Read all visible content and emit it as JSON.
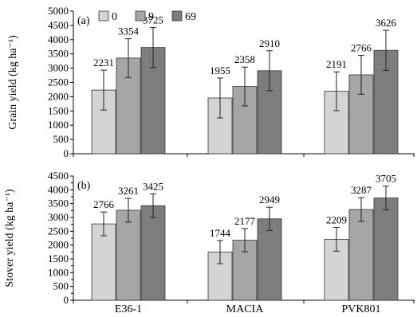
{
  "colors": {
    "0": "#d4d4d4",
    "9": "#a6a6a6",
    "69": "#7d7d7d",
    "edge": "#333333"
  },
  "legend": [
    "0",
    "9",
    "69"
  ],
  "chart_data": [
    {
      "type": "bar",
      "panel": "(a)",
      "ylabel": "Grain yield (kg ha⁻¹)",
      "ylim": [
        0,
        5000
      ],
      "ticks": [
        0,
        500,
        1000,
        1500,
        2000,
        2500,
        3000,
        3500,
        4000,
        4500,
        5000
      ],
      "categories": [
        "E36-1",
        "MACIA",
        "PVK801"
      ],
      "series": [
        {
          "name": "0",
          "values": [
            2231,
            1955,
            2191
          ],
          "errors": [
            700,
            700,
            680
          ]
        },
        {
          "name": "9",
          "values": [
            3354,
            2358,
            2766
          ],
          "errors": [
            680,
            680,
            680
          ]
        },
        {
          "name": "69",
          "values": [
            3725,
            2910,
            3626
          ],
          "errors": [
            700,
            700,
            700
          ]
        }
      ]
    },
    {
      "type": "bar",
      "panel": "(b)",
      "ylabel": "Stover yield (kg ha⁻¹)",
      "ylim": [
        0,
        4500
      ],
      "ticks": [
        0,
        250,
        500,
        750,
        1000,
        1250,
        1500,
        1750,
        2000,
        2250,
        2500,
        2750,
        3000,
        3250,
        3500,
        3750,
        4000,
        4250,
        4500
      ],
      "tick_labels": [
        0,
        500,
        1000,
        1500,
        2000,
        2500,
        3000,
        3500,
        4000,
        4500
      ],
      "categories": [
        "E36-1",
        "MACIA",
        "PVK801"
      ],
      "series": [
        {
          "name": "0",
          "values": [
            2766,
            1744,
            2209
          ],
          "errors": [
            430,
            420,
            430
          ]
        },
        {
          "name": "9",
          "values": [
            3261,
            2177,
            3287
          ],
          "errors": [
            430,
            420,
            430
          ]
        },
        {
          "name": "69",
          "values": [
            3425,
            2949,
            3705
          ],
          "errors": [
            430,
            420,
            430
          ]
        }
      ]
    }
  ]
}
